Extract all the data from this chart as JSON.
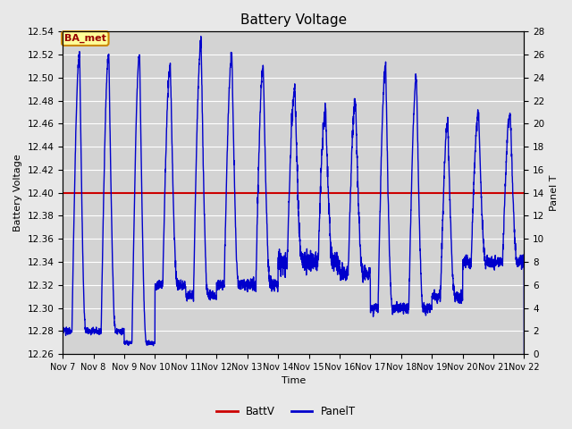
{
  "title": "Battery Voltage",
  "xlabel": "Time",
  "ylabel_left": "Battery Voltage",
  "ylabel_right": "Panel T",
  "x_start": 7,
  "x_end": 22,
  "x_ticks": [
    7,
    8,
    9,
    10,
    11,
    12,
    13,
    14,
    15,
    16,
    17,
    18,
    19,
    20,
    21,
    22
  ],
  "x_tick_labels": [
    "Nov 7",
    "Nov 8",
    "Nov 9",
    "Nov 10",
    "Nov 11",
    "Nov 12",
    "Nov 13",
    "Nov 14",
    "Nov 15",
    "Nov 16",
    "Nov 17",
    "Nov 18",
    "Nov 19",
    "Nov 20",
    "Nov 21",
    "Nov 22"
  ],
  "ylim_left": [
    12.26,
    12.54
  ],
  "ylim_right": [
    0,
    28
  ],
  "yticks_left": [
    12.26,
    12.28,
    12.3,
    12.32,
    12.34,
    12.36,
    12.38,
    12.4,
    12.42,
    12.44,
    12.46,
    12.48,
    12.5,
    12.52,
    12.54
  ],
  "yticks_right": [
    0,
    2,
    4,
    6,
    8,
    10,
    12,
    14,
    16,
    18,
    20,
    22,
    24,
    26,
    28
  ],
  "batt_v_value": 12.4,
  "batt_color": "#cc0000",
  "panel_color": "#0000cc",
  "background_color": "#e8e8e8",
  "plot_bg_color": "#d3d3d3",
  "grid_color": "#ffffff",
  "annotation_text": "BA_met",
  "annotation_bg": "#ffff99",
  "annotation_border": "#cc8800",
  "annotation_text_color": "#990000",
  "legend_labels": [
    "BattV",
    "PanelT"
  ],
  "title_fontsize": 11,
  "label_fontsize": 8,
  "tick_fontsize": 7.5
}
